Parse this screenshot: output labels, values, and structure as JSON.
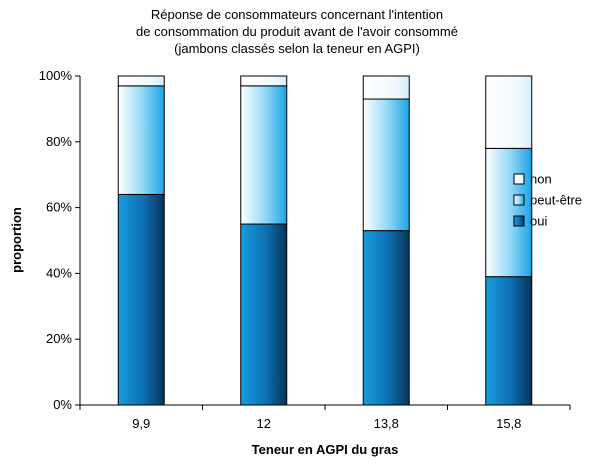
{
  "chart_data": {
    "type": "bar",
    "stacked": true,
    "title": [
      "Réponse de consommateurs concernant l'intention",
      "de consommation du produit avant de l'avoir consommé",
      "(jambons classés selon la teneur en AGPI)"
    ],
    "xlabel": "Teneur en AGPI du gras",
    "ylabel": "proportion",
    "categories": [
      "9,9",
      "12",
      "13,8",
      "15,8"
    ],
    "ylim": [
      0,
      100
    ],
    "yticks": [
      "0%",
      "20%",
      "40%",
      "60%",
      "80%",
      "100%"
    ],
    "legend_position": "right",
    "series": [
      {
        "name": "oui",
        "values": [
          64,
          55,
          53,
          39
        ],
        "color": "#0f84c6"
      },
      {
        "name": "peut-être",
        "values": [
          33,
          42,
          40,
          39
        ],
        "color": "#8fd6f6"
      },
      {
        "name": "non",
        "values": [
          3,
          3,
          7,
          22
        ],
        "color": "#eef8fe"
      }
    ],
    "legend_order": [
      "non",
      "peut-être",
      "oui"
    ]
  }
}
